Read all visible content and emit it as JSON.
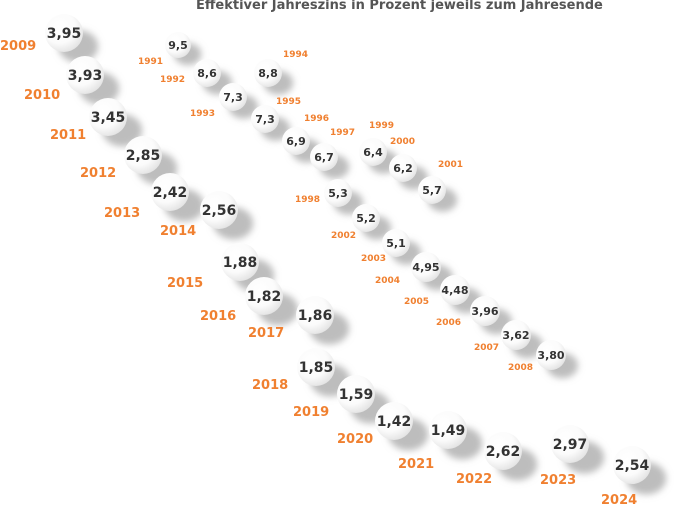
{
  "title": "Effektiver Jahreszins in Prozent jeweils zum Jahresende",
  "colors": {
    "value_text": "#333333",
    "year_text": "#f08030",
    "shadow": "#bdbdbd",
    "title": "#555555"
  },
  "chart_data": {
    "type": "scatter",
    "title": "Effektiver Jahreszins in Prozent jeweils zum Jahresende",
    "unit": "Prozent",
    "points": [
      {
        "year": "1991",
        "value": "9,5"
      },
      {
        "year": "1992",
        "value": "8,6"
      },
      {
        "year": "1993",
        "value": "7,3"
      },
      {
        "year": "1994",
        "value": "8,8"
      },
      {
        "year": "1995",
        "value": "7,3"
      },
      {
        "year": "1996",
        "value": "6,9"
      },
      {
        "year": "1997",
        "value": "6,7"
      },
      {
        "year": "1998",
        "value": "5,3"
      },
      {
        "year": "1999",
        "value": "6,4"
      },
      {
        "year": "2000",
        "value": "6,2"
      },
      {
        "year": "2001",
        "value": "5,7"
      },
      {
        "year": "2002",
        "value": "5,2"
      },
      {
        "year": "2003",
        "value": "5,1"
      },
      {
        "year": "2004",
        "value": "4,95"
      },
      {
        "year": "2005",
        "value": "4,48"
      },
      {
        "year": "2006",
        "value": "3,96"
      },
      {
        "year": "2007",
        "value": "3,62"
      },
      {
        "year": "2008",
        "value": "3,80"
      },
      {
        "year": "2009",
        "value": "3,95"
      },
      {
        "year": "2010",
        "value": "3,93"
      },
      {
        "year": "2011",
        "value": "3,45"
      },
      {
        "year": "2012",
        "value": "2,85"
      },
      {
        "year": "2013",
        "value": "2,42"
      },
      {
        "year": "2014",
        "value": "2,56"
      },
      {
        "year": "2015",
        "value": "1,88"
      },
      {
        "year": "2016",
        "value": "1,82"
      },
      {
        "year": "2017",
        "value": "1,86"
      },
      {
        "year": "2018",
        "value": "1,85"
      },
      {
        "year": "2019",
        "value": "1,59"
      },
      {
        "year": "2020",
        "value": "1,42"
      },
      {
        "year": "2021",
        "value": "1,49"
      },
      {
        "year": "2022",
        "value": "2,62"
      },
      {
        "year": "2023",
        "value": "2,97"
      },
      {
        "year": "2024",
        "value": "2,54"
      }
    ]
  }
}
